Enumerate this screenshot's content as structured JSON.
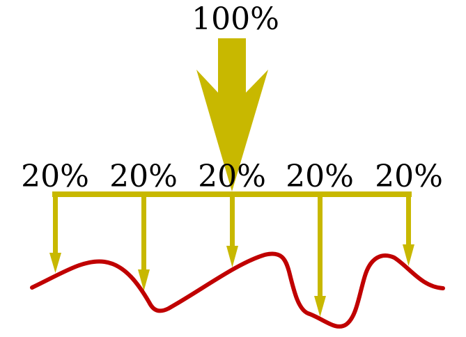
{
  "diagram": {
    "top_label": "100%",
    "branch_labels": [
      "20%",
      "20%",
      "20%",
      "20%",
      "20%"
    ],
    "colors": {
      "arrow": "#c8b800",
      "curve": "#c00000",
      "text": "#000000",
      "background": "#ffffff"
    }
  }
}
